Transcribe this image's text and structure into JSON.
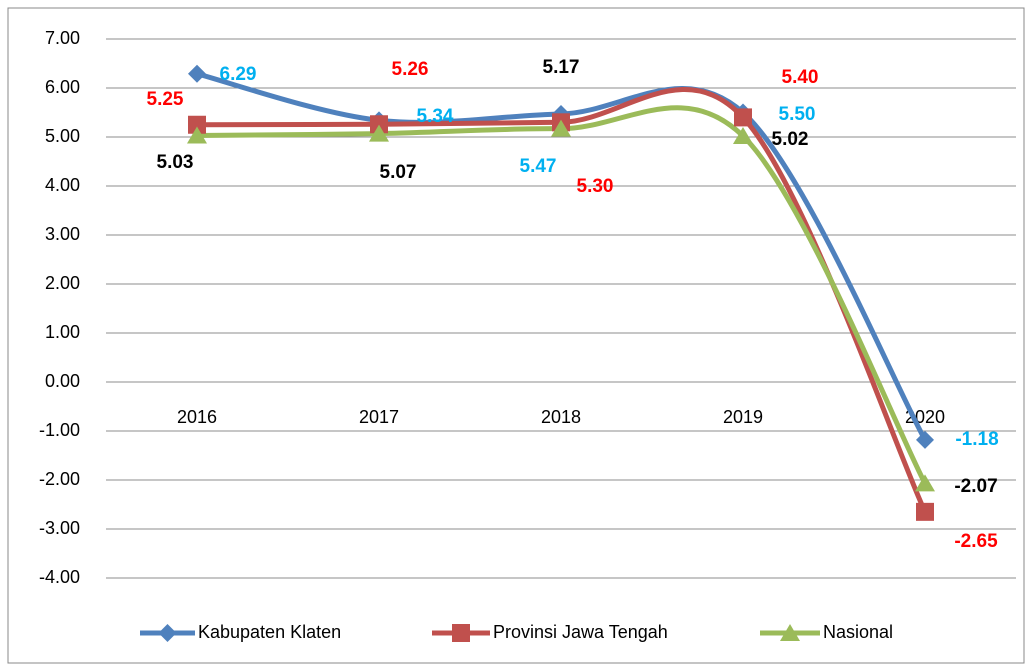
{
  "chart_data": {
    "type": "line",
    "categories": [
      "2016",
      "2017",
      "2018",
      "2019",
      "2020"
    ],
    "series": [
      {
        "name": "Kabupaten Klaten",
        "color": "#4f81bd",
        "marker": "diamond",
        "label_color": "#00b0f0",
        "values": [
          6.29,
          5.34,
          5.47,
          5.5,
          -1.18
        ],
        "value_labels": [
          "6.29",
          "5.34",
          "5.47",
          "5.50",
          "-1.18"
        ]
      },
      {
        "name": "Provinsi Jawa Tengah",
        "color": "#c0504d",
        "marker": "square",
        "label_color": "#ff0000",
        "values": [
          5.25,
          5.26,
          5.3,
          5.4,
          -2.65
        ],
        "value_labels": [
          "5.25",
          "5.26",
          "5.30",
          "5.40",
          "-2.65"
        ]
      },
      {
        "name": "Nasional",
        "color": "#9bbb59",
        "marker": "triangle",
        "label_color": "#000000",
        "values": [
          5.03,
          5.07,
          5.17,
          5.02,
          -2.07
        ],
        "value_labels": [
          "5.03",
          "5.07",
          "5.17",
          "5.02",
          "-2.07"
        ]
      }
    ],
    "ylim": [
      -4,
      7
    ],
    "yticks": [
      {
        "value": -4,
        "label": "-4.00"
      },
      {
        "value": -3,
        "label": "-3.00"
      },
      {
        "value": -2,
        "label": "-2.00"
      },
      {
        "value": -1,
        "label": "-1.00"
      },
      {
        "value": 0,
        "label": "0.00"
      },
      {
        "value": 1,
        "label": "1.00"
      },
      {
        "value": 2,
        "label": "2.00"
      },
      {
        "value": 3,
        "label": "3.00"
      },
      {
        "value": 4,
        "label": "4.00"
      },
      {
        "value": 5,
        "label": "5.00"
      },
      {
        "value": 6,
        "label": "6.00"
      },
      {
        "value": 7,
        "label": "7.00"
      }
    ],
    "grid": true,
    "smooth": true,
    "legend": "bottom"
  }
}
